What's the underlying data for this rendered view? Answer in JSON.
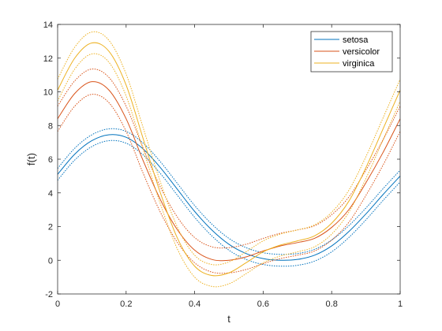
{
  "chart_data": {
    "type": "line",
    "title": "",
    "xlabel": "t",
    "ylabel": "f(t)",
    "xlim": [
      0,
      1
    ],
    "ylim": [
      -2,
      14
    ],
    "x_ticks": [
      0,
      0.2,
      0.4,
      0.6,
      0.8,
      1
    ],
    "x_tick_labels": [
      "0",
      "0.2",
      "0.4",
      "0.6",
      "0.8",
      "1"
    ],
    "y_ticks": [
      -2,
      0,
      2,
      4,
      6,
      8,
      10,
      12,
      14
    ],
    "y_tick_labels": [
      "-2",
      "0",
      "2",
      "4",
      "6",
      "8",
      "10",
      "12",
      "14"
    ],
    "grid": false,
    "legend_position": "top-right",
    "x": [
      0,
      0.05,
      0.1,
      0.15,
      0.2,
      0.25,
      0.3,
      0.35,
      0.4,
      0.45,
      0.5,
      0.55,
      0.6,
      0.65,
      0.7,
      0.75,
      0.8,
      0.85,
      0.9,
      0.95,
      1.0
    ],
    "series": [
      {
        "name": "setosa",
        "color": "#0072BD",
        "values": [
          5.1,
          6.3,
          7.1,
          7.45,
          7.3,
          6.6,
          5.5,
          4.2,
          2.9,
          1.8,
          0.95,
          0.4,
          0.1,
          0.0,
          0.05,
          0.3,
          0.85,
          1.7,
          2.75,
          3.9,
          5.0
        ],
        "band": 0.35
      },
      {
        "name": "versicolor",
        "color": "#D95319",
        "values": [
          8.4,
          9.9,
          10.6,
          10.1,
          8.4,
          5.9,
          3.6,
          1.8,
          0.6,
          0.05,
          0.0,
          0.2,
          0.55,
          0.85,
          1.05,
          1.3,
          1.95,
          3.0,
          4.6,
          6.4,
          8.4
        ],
        "band": 0.75
      },
      {
        "name": "virginica",
        "color": "#EDB120",
        "values": [
          10.1,
          12.0,
          12.9,
          12.4,
          10.4,
          7.2,
          4.0,
          1.3,
          -0.35,
          -0.9,
          -0.75,
          -0.15,
          0.5,
          0.9,
          1.15,
          1.45,
          2.2,
          3.5,
          5.5,
          7.8,
          10.1
        ],
        "band": 0.65
      }
    ]
  }
}
